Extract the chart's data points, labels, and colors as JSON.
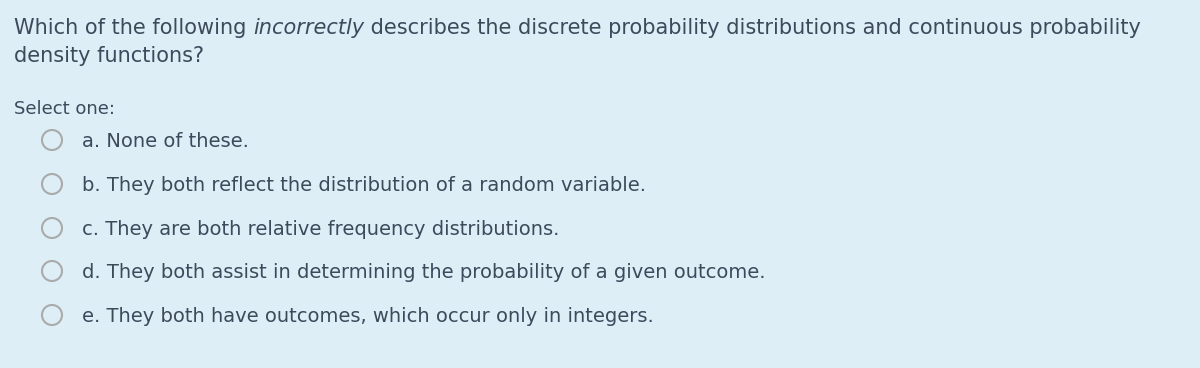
{
  "background_color": "#ddeef6",
  "text_color": "#3d4a5c",
  "title_normal1": "Which of the following ",
  "title_italic": "incorrectly",
  "title_normal2": " describes the discrete probability distributions and continuous probability",
  "title_line2": "density functions?",
  "select_label": "Select one:",
  "options": [
    "a. None of these.",
    "b. They both reflect the distribution of a random variable.",
    "c. They are both relative frequency distributions.",
    "d. They both assist in determining the probability of a given outcome.",
    "e. They both have outcomes, which occur only in integers."
  ],
  "font_size_title": 15.0,
  "font_size_select": 13.0,
  "font_size_options": 14.0,
  "circle_color": "#aaaaaa",
  "circle_linewidth": 1.5
}
